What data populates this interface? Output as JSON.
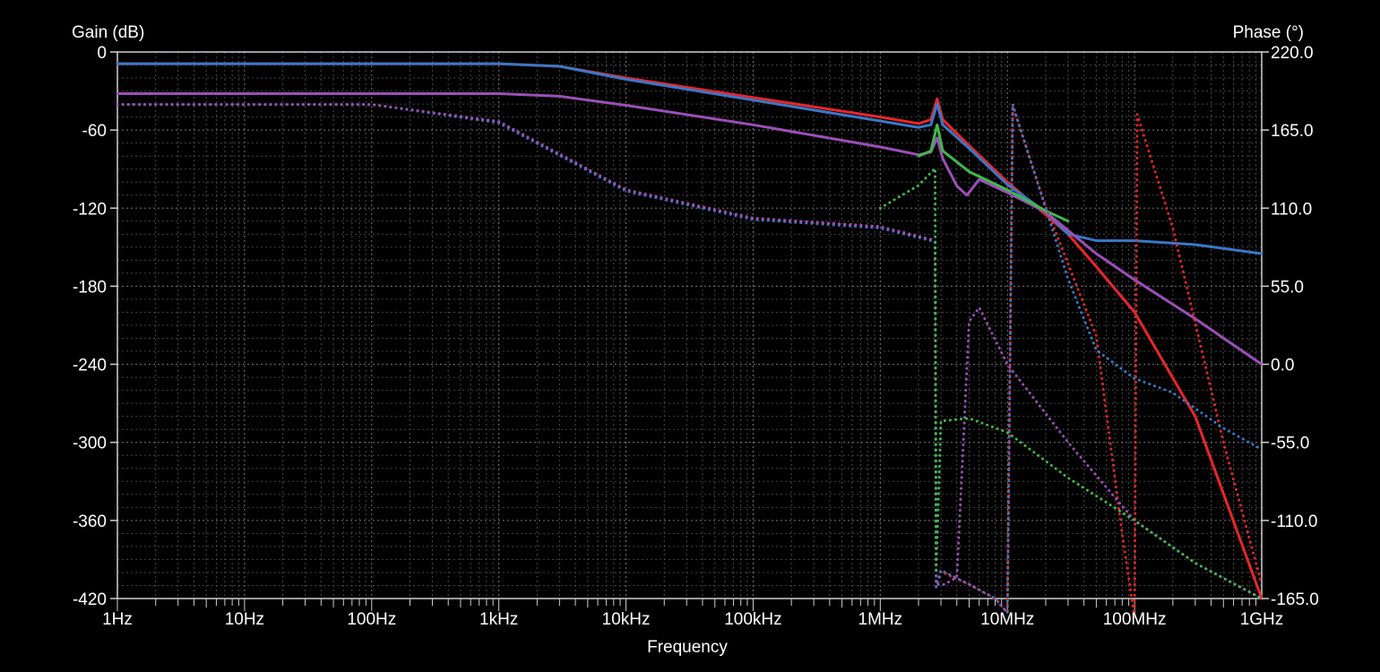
{
  "chart_data": {
    "type": "line",
    "title": "",
    "xlabel": "Frequency",
    "ylabel_left": "Gain (dB)",
    "ylabel_right": "Phase (°)",
    "x_scale": "log",
    "xlim": [
      1,
      1000000000
    ],
    "ylim_left": [
      -420,
      0
    ],
    "ylim_right": [
      -165,
      220
    ],
    "grid": true,
    "legend": "none",
    "x_ticks": [
      {
        "value": 1,
        "label": "1Hz"
      },
      {
        "value": 10,
        "label": "10Hz"
      },
      {
        "value": 100,
        "label": "100Hz"
      },
      {
        "value": 1000,
        "label": "1kHz"
      },
      {
        "value": 10000,
        "label": "10kHz"
      },
      {
        "value": 100000,
        "label": "100kHz"
      },
      {
        "value": 1000000,
        "label": "1MHz"
      },
      {
        "value": 10000000,
        "label": "10MHz"
      },
      {
        "value": 100000000,
        "label": "100MHz"
      },
      {
        "value": 1000000000,
        "label": "1GHz"
      }
    ],
    "y_ticks_left": [
      {
        "value": 0,
        "label": "0"
      },
      {
        "value": -60,
        "label": "-60"
      },
      {
        "value": -120,
        "label": "-120"
      },
      {
        "value": -180,
        "label": "-180"
      },
      {
        "value": -240,
        "label": "-240"
      },
      {
        "value": -300,
        "label": "-300"
      },
      {
        "value": -360,
        "label": "-360"
      },
      {
        "value": -420,
        "label": "-420"
      }
    ],
    "y_ticks_right": [
      {
        "value": 220,
        "label": "220.0"
      },
      {
        "value": 165,
        "label": "165.0"
      },
      {
        "value": 110,
        "label": "110.0"
      },
      {
        "value": 55,
        "label": "55.0"
      },
      {
        "value": 0,
        "label": "0.0"
      },
      {
        "value": -55,
        "label": "-55.0"
      },
      {
        "value": -110,
        "label": "-110.0"
      },
      {
        "value": -165,
        "label": "-165.0"
      }
    ],
    "series": [
      {
        "kind": "gain",
        "color": "#e8262b",
        "style": "solid",
        "points": [
          [
            1,
            -9
          ],
          [
            1000,
            -9
          ],
          [
            3000,
            -11
          ],
          [
            10000,
            -20
          ],
          [
            100000,
            -35
          ],
          [
            1000000,
            -50
          ],
          [
            2000000,
            -55
          ],
          [
            2500000,
            -52
          ],
          [
            2800000,
            -36
          ],
          [
            3100000,
            -52
          ],
          [
            5000000,
            -72
          ],
          [
            10000000,
            -100
          ],
          [
            20000000,
            -125
          ],
          [
            30000000,
            -140
          ],
          [
            50000000,
            -165
          ],
          [
            100000000,
            -200
          ],
          [
            300000000,
            -280
          ],
          [
            1000000000,
            -420
          ]
        ]
      },
      {
        "kind": "gain",
        "color": "#3a78c8",
        "style": "solid",
        "points": [
          [
            1,
            -9
          ],
          [
            1000,
            -9
          ],
          [
            3000,
            -11
          ],
          [
            10000,
            -21
          ],
          [
            100000,
            -37
          ],
          [
            1000000,
            -53
          ],
          [
            2000000,
            -58
          ],
          [
            2500000,
            -56
          ],
          [
            2800000,
            -40
          ],
          [
            3100000,
            -56
          ],
          [
            5000000,
            -74
          ],
          [
            10000000,
            -102
          ],
          [
            20000000,
            -123
          ],
          [
            30000000,
            -140
          ],
          [
            50000000,
            -145
          ],
          [
            100000000,
            -145
          ],
          [
            300000000,
            -148
          ],
          [
            1000000000,
            -155
          ]
        ]
      },
      {
        "kind": "gain",
        "color": "#9b4fb8",
        "style": "solid",
        "points": [
          [
            1,
            -32
          ],
          [
            1000,
            -32
          ],
          [
            3000,
            -34
          ],
          [
            10000,
            -41
          ],
          [
            100000,
            -56
          ],
          [
            1000000,
            -73
          ],
          [
            2000000,
            -79
          ],
          [
            2500000,
            -77
          ],
          [
            2800000,
            -66
          ],
          [
            3100000,
            -82
          ],
          [
            4000000,
            -103
          ],
          [
            4800000,
            -110
          ],
          [
            6000000,
            -98
          ],
          [
            10000000,
            -108
          ],
          [
            20000000,
            -123
          ],
          [
            50000000,
            -155
          ],
          [
            100000000,
            -175
          ],
          [
            300000000,
            -205
          ],
          [
            1000000000,
            -240
          ]
        ]
      },
      {
        "kind": "gain",
        "color": "#41b84a",
        "style": "solid",
        "points": [
          [
            2000000,
            -80
          ],
          [
            2500000,
            -76
          ],
          [
            2800000,
            -56
          ],
          [
            3100000,
            -76
          ],
          [
            5000000,
            -92
          ],
          [
            10000000,
            -106
          ],
          [
            20000000,
            -122
          ],
          [
            30000000,
            -130
          ]
        ]
      },
      {
        "kind": "phase",
        "color": "#e8262b",
        "style": "dotted",
        "points": [
          [
            1,
            183
          ],
          [
            100,
            183
          ],
          [
            1000,
            171
          ],
          [
            10000,
            123
          ],
          [
            100000,
            103
          ],
          [
            1000000,
            97
          ],
          [
            2500000,
            88
          ],
          [
            2700000,
            86
          ],
          [
            2750000,
            -157
          ],
          [
            3000000,
            -146
          ],
          [
            5000000,
            -155
          ],
          [
            8000000,
            -165
          ],
          [
            10000000,
            -175
          ],
          [
            11000000,
            182
          ],
          [
            20000000,
            111
          ],
          [
            50000000,
            20
          ],
          [
            80000000,
            -120
          ],
          [
            100000000,
            -178
          ],
          [
            105000000,
            176
          ],
          [
            200000000,
            96
          ],
          [
            500000000,
            -55
          ],
          [
            1000000000,
            -155
          ]
        ]
      },
      {
        "kind": "phase",
        "color": "#3a78c8",
        "style": "dotted",
        "points": [
          [
            1,
            183
          ],
          [
            100,
            183
          ],
          [
            1000,
            170
          ],
          [
            10000,
            122
          ],
          [
            100000,
            102
          ],
          [
            1000000,
            96
          ],
          [
            2500000,
            87
          ],
          [
            2700000,
            86
          ],
          [
            2750000,
            -157
          ],
          [
            3000000,
            -145
          ],
          [
            5000000,
            -155
          ],
          [
            8000000,
            -165
          ],
          [
            10000000,
            -175
          ],
          [
            11000000,
            183
          ],
          [
            20000000,
            110
          ],
          [
            30000000,
            60
          ],
          [
            50000000,
            10
          ],
          [
            100000000,
            -10
          ],
          [
            200000000,
            -20
          ],
          [
            500000000,
            -45
          ],
          [
            1000000000,
            -60
          ]
        ]
      },
      {
        "kind": "phase",
        "color": "#9b4fb8",
        "style": "dotted",
        "points": [
          [
            1,
            183
          ],
          [
            100,
            183
          ],
          [
            1000,
            171
          ],
          [
            10000,
            123
          ],
          [
            100000,
            103
          ],
          [
            1000000,
            97
          ],
          [
            2500000,
            88
          ],
          [
            2700000,
            86
          ],
          [
            2750000,
            -155
          ],
          [
            3200000,
            -155
          ],
          [
            4000000,
            -150
          ],
          [
            5000000,
            30
          ],
          [
            6000000,
            40
          ],
          [
            10000000,
            0
          ],
          [
            30000000,
            -55
          ],
          [
            100000000,
            -110
          ],
          [
            300000000,
            -140
          ],
          [
            1000000000,
            -165
          ]
        ]
      },
      {
        "kind": "phase",
        "color": "#41b84a",
        "style": "dotted",
        "points": [
          [
            1000000,
            110
          ],
          [
            2000000,
            126
          ],
          [
            2700000,
            138
          ],
          [
            2750000,
            -145
          ],
          [
            3000000,
            -40
          ],
          [
            5000000,
            -38
          ],
          [
            10000000,
            -48
          ],
          [
            30000000,
            -80
          ],
          [
            100000000,
            -110
          ],
          [
            300000000,
            -140
          ],
          [
            1000000000,
            -165
          ]
        ]
      }
    ]
  }
}
